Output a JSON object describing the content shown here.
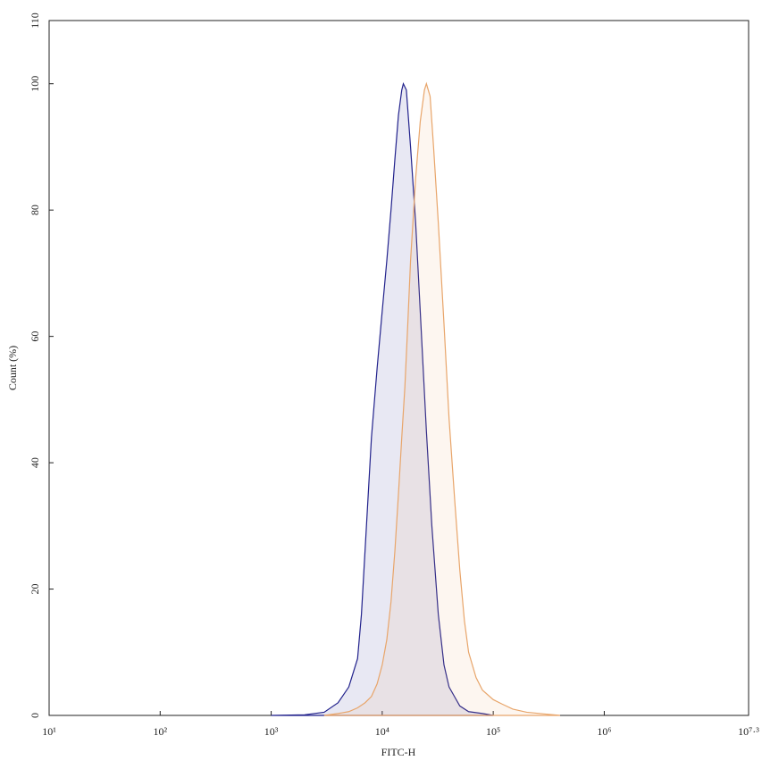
{
  "chart_data": {
    "type": "area",
    "x_label": "FITC-H",
    "y_label": "Count (%)",
    "x_scale": "log",
    "xlim": [
      10,
      19952623
    ],
    "ylim": [
      0,
      110
    ],
    "xticks": [
      {
        "value": 10,
        "label": "10¹"
      },
      {
        "value": 100,
        "label": "10²"
      },
      {
        "value": 1000,
        "label": "10³"
      },
      {
        "value": 10000,
        "label": "10⁴"
      },
      {
        "value": 100000,
        "label": "10⁵"
      },
      {
        "value": 1000000,
        "label": "10⁶"
      },
      {
        "value": 19952623,
        "label": "10⁷·³"
      }
    ],
    "yticks": [
      0,
      20,
      40,
      60,
      80,
      100,
      110
    ],
    "series": [
      {
        "color": "#22228c",
        "x": [
          1000,
          2000,
          3000,
          4000,
          5000,
          6000,
          6500,
          7000,
          8000,
          9000,
          10000,
          11000,
          12000,
          13000,
          14000,
          15000,
          15500,
          16500,
          18000,
          20000,
          22000,
          25000,
          28000,
          32000,
          36000,
          40000,
          50000,
          60000,
          80000,
          100000
        ],
        "values": [
          0,
          0.1,
          0.5,
          2,
          4.5,
          9,
          16,
          26,
          44,
          55,
          64,
          72,
          80,
          88,
          95,
          99,
          100,
          99,
          90,
          78,
          64,
          45,
          30,
          16,
          8,
          4.5,
          1.5,
          0.6,
          0.3,
          0
        ]
      },
      {
        "color": "#e8a56a",
        "x": [
          3000,
          4000,
          5000,
          6000,
          7000,
          8000,
          9000,
          10000,
          11000,
          12000,
          13000,
          14000,
          15000,
          16000,
          17000,
          18000,
          20000,
          22000,
          24000,
          25000,
          27000,
          29000,
          32000,
          36000,
          40000,
          45000,
          50000,
          55000,
          60000,
          70000,
          80000,
          100000,
          120000,
          150000,
          200000,
          300000,
          400000
        ],
        "values": [
          0,
          0.3,
          0.6,
          1.2,
          2,
          3,
          5,
          8,
          12,
          18,
          26,
          35,
          44,
          52,
          62,
          72,
          85,
          94,
          99,
          100,
          98,
          90,
          78,
          62,
          47,
          34,
          23,
          15,
          10,
          6,
          4,
          2.5,
          1.8,
          1,
          0.5,
          0.2,
          0
        ]
      }
    ]
  }
}
